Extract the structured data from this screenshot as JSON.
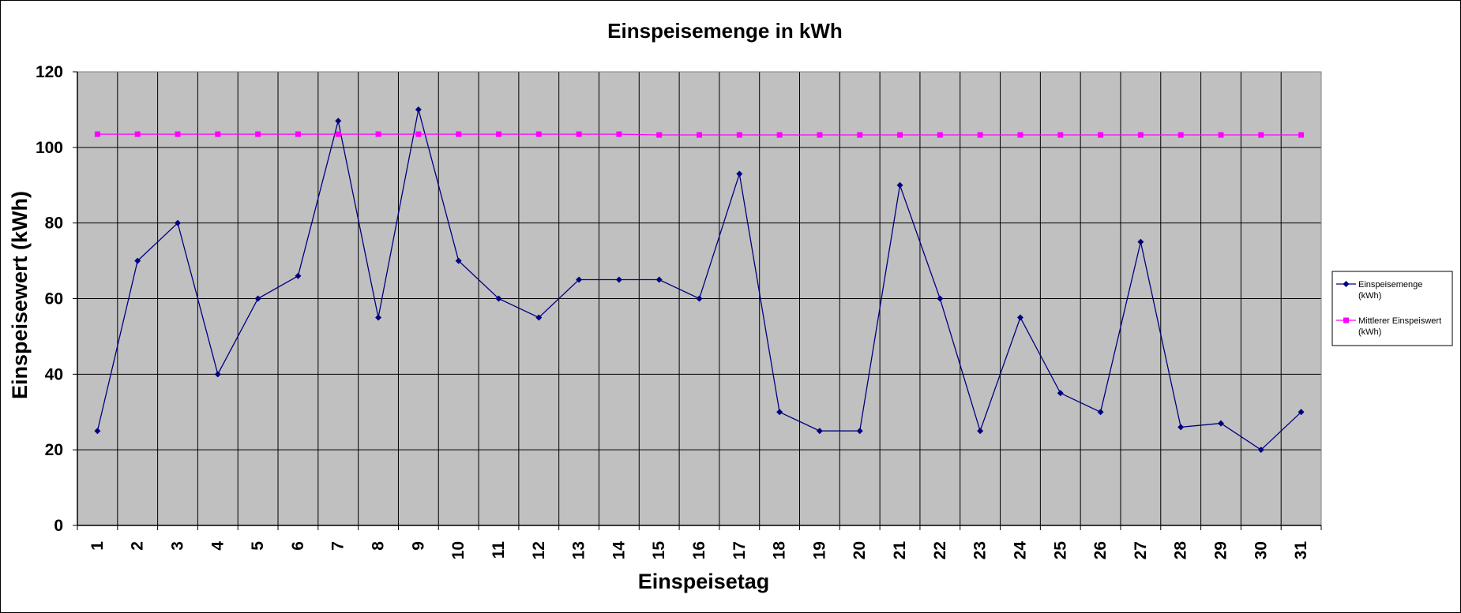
{
  "chart_data": {
    "type": "line",
    "title": "Einspeisemenge in kWh",
    "xlabel": "Einspeisetag",
    "ylabel": "Einspeisewert  (kWh)",
    "categories": [
      "1",
      "2",
      "3",
      "4",
      "5",
      "6",
      "7",
      "8",
      "9",
      "10",
      "11",
      "12",
      "13",
      "14",
      "15",
      "16",
      "17",
      "18",
      "19",
      "20",
      "21",
      "22",
      "23",
      "24",
      "25",
      "26",
      "27",
      "28",
      "29",
      "30",
      "31"
    ],
    "ylim": [
      0,
      120
    ],
    "yticks": [
      0,
      20,
      40,
      60,
      80,
      100,
      120
    ],
    "grid": true,
    "legend_position": "right",
    "plot_background": "#c0c0c0",
    "series": [
      {
        "name_lines": [
          "Einspeisemenge",
          "(kWh)"
        ],
        "color": "#000080",
        "marker": "diamond",
        "values": [
          25,
          70,
          80,
          40,
          60,
          66,
          107,
          55,
          110,
          70,
          60,
          55,
          65,
          65,
          65,
          60,
          93,
          30,
          25,
          25,
          90,
          60,
          25,
          55,
          35,
          30,
          75,
          26,
          27,
          20,
          30
        ]
      },
      {
        "name_lines": [
          "Mittlerer Einspeiswert",
          "(kWh)"
        ],
        "color": "#ff00ff",
        "marker": "square",
        "values": [
          103.5,
          103.5,
          103.5,
          103.5,
          103.5,
          103.5,
          103.5,
          103.5,
          103.5,
          103.5,
          103.5,
          103.5,
          103.5,
          103.5,
          103.3,
          103.3,
          103.3,
          103.3,
          103.3,
          103.3,
          103.3,
          103.3,
          103.3,
          103.3,
          103.3,
          103.3,
          103.3,
          103.3,
          103.3,
          103.3,
          103.3
        ]
      }
    ]
  }
}
